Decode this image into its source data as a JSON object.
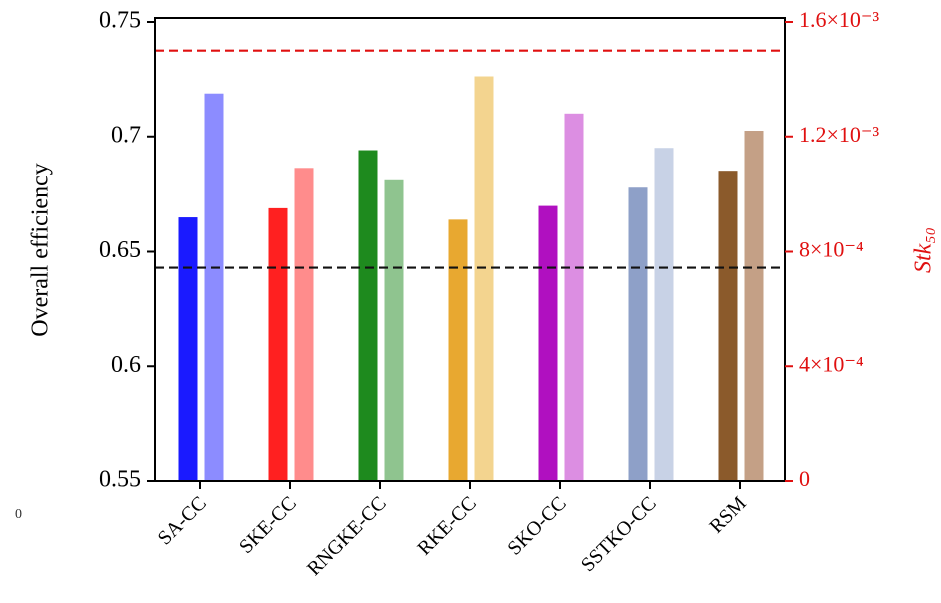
{
  "chart_data": {
    "type": "bar",
    "y_label": "Overall efficiency",
    "y2_label": "Stk₅₀",
    "annotation": "0",
    "categories": [
      "SA-CC",
      "SKE-CC",
      "RNGKE-CC",
      "RKE-CC",
      "SKO-CC",
      "SSTKO-CC",
      "RSM"
    ],
    "series": [
      {
        "axis": "y",
        "colors": [
          "#1a1aff",
          "#ff2020",
          "#1e8a1e",
          "#e8a830",
          "#b010c0",
          "#8ea0c8",
          "#8b5a2b"
        ],
        "values": [
          0.665,
          0.669,
          0.694,
          0.664,
          0.67,
          0.678,
          0.685
        ]
      },
      {
        "axis": "y2",
        "colors": [
          "#8c8cff",
          "#ff8c8c",
          "#8fc48f",
          "#f3d48f",
          "#dc8ee2",
          "#c8d2e6",
          "#c4a086"
        ],
        "values": [
          0.00135,
          0.00109,
          0.00105,
          0.00141,
          0.00128,
          0.00116,
          0.00122
        ]
      }
    ],
    "hlines": [
      {
        "axis": "y",
        "value": 0.643,
        "color": "#111111"
      },
      {
        "axis": "y2",
        "value": 0.0015,
        "color": "#e01010"
      }
    ],
    "ylim": [
      0.55,
      0.75
    ],
    "yticks": [
      0.55,
      0.6,
      0.65,
      0.7,
      0.75
    ],
    "y2lim": [
      0,
      0.0016
    ],
    "y2ticks": [
      0,
      {
        "value": 0.0004,
        "label": "4×10⁻⁴"
      },
      {
        "value": 0.0008,
        "label": "8×10⁻⁴"
      },
      {
        "value": 0.0012,
        "label": "1.2×10⁻³"
      },
      {
        "value": 0.0016,
        "label": "1.6×10⁻³"
      }
    ],
    "y2color": "#e01010"
  }
}
